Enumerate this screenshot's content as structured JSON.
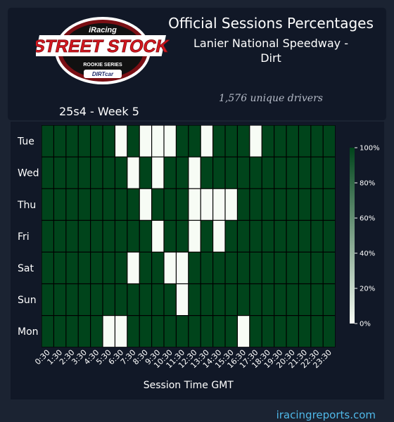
{
  "header": {
    "title": "Official Sessions Percentages",
    "track_line1": "Lanier National Speedway -",
    "track_line2": "Dirt",
    "unique_drivers": "1,576 unique drivers",
    "week": "25s4 - Week 5"
  },
  "logo": {
    "brand": "iRacing",
    "name": "STREET STOCK",
    "series": "ROOKIE SERIES",
    "sponsor": "DIRTcar"
  },
  "footer": {
    "site": "iracingreports.com"
  },
  "colors": {
    "high": "#00441b",
    "low": "#f7fcf5",
    "background": "#1b2332",
    "panel": "#111827"
  },
  "chart_data": {
    "type": "heatmap",
    "xlabel": "Session Time GMT",
    "rows": [
      "Tue",
      "Wed",
      "Thu",
      "Fri",
      "Sat",
      "Sun",
      "Mon"
    ],
    "columns": [
      "0:30",
      "1:30",
      "2:30",
      "3:30",
      "4:30",
      "5:30",
      "6:30",
      "7:30",
      "8:30",
      "9:30",
      "10:30",
      "11:30",
      "12:30",
      "13:30",
      "14:30",
      "15:30",
      "16:30",
      "17:30",
      "18:30",
      "19:30",
      "20:30",
      "21:30",
      "22:30",
      "23:30"
    ],
    "value_unit": "%",
    "values": [
      [
        100,
        100,
        100,
        100,
        100,
        100,
        0,
        100,
        0,
        0,
        0,
        100,
        100,
        0,
        100,
        100,
        100,
        0,
        100,
        100,
        100,
        100,
        100,
        100
      ],
      [
        100,
        100,
        100,
        100,
        100,
        100,
        100,
        0,
        100,
        0,
        100,
        100,
        0,
        100,
        100,
        100,
        100,
        100,
        100,
        100,
        100,
        100,
        100,
        100
      ],
      [
        100,
        100,
        100,
        100,
        100,
        100,
        100,
        100,
        0,
        100,
        100,
        100,
        0,
        0,
        0,
        0,
        100,
        100,
        100,
        100,
        100,
        100,
        100,
        100
      ],
      [
        100,
        100,
        100,
        100,
        100,
        100,
        100,
        100,
        100,
        0,
        100,
        100,
        0,
        100,
        0,
        100,
        100,
        100,
        100,
        100,
        100,
        100,
        100,
        100
      ],
      [
        100,
        100,
        100,
        100,
        100,
        100,
        100,
        0,
        100,
        100,
        0,
        0,
        100,
        100,
        100,
        100,
        100,
        100,
        100,
        100,
        100,
        100,
        100,
        100
      ],
      [
        100,
        100,
        100,
        100,
        100,
        100,
        100,
        100,
        100,
        100,
        100,
        0,
        100,
        100,
        100,
        100,
        100,
        100,
        100,
        100,
        100,
        100,
        100,
        100
      ],
      [
        100,
        100,
        100,
        100,
        100,
        0,
        0,
        100,
        100,
        100,
        100,
        100,
        100,
        100,
        100,
        100,
        0,
        100,
        100,
        100,
        100,
        100,
        100,
        100
      ]
    ],
    "colorbar": {
      "range": [
        0,
        100
      ],
      "ticks": [
        "0%",
        "20%",
        "40%",
        "60%",
        "80%",
        "100%"
      ]
    },
    "grid": false,
    "legend": "right"
  }
}
